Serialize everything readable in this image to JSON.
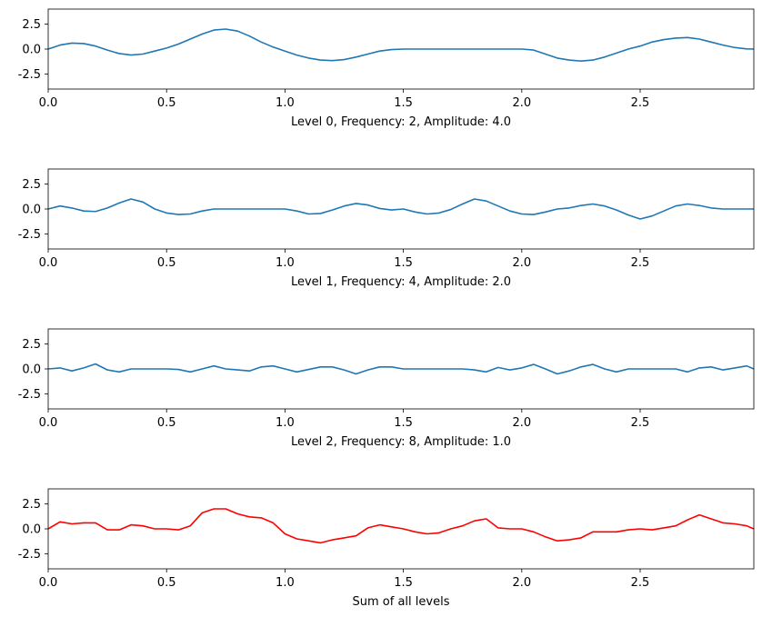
{
  "chart_data": [
    {
      "type": "line",
      "title": "",
      "xlabel": "Level 0, Frequency: 2, Amplitude: 4.0",
      "ylabel": "",
      "xlim": [
        0,
        2.98
      ],
      "ylim": [
        -4,
        4
      ],
      "xticks": [
        "0.0",
        "0.5",
        "1.0",
        "1.5",
        "2.0",
        "2.5"
      ],
      "yticks": [
        "2.5",
        "0.0",
        "-2.5"
      ],
      "color": "#1f77b4",
      "series": [
        {
          "x": [
            0,
            0.05,
            0.1,
            0.15,
            0.2,
            0.25,
            0.3,
            0.35,
            0.4,
            0.45,
            0.5,
            0.55,
            0.6,
            0.65,
            0.7,
            0.75,
            0.8,
            0.85,
            0.9,
            0.95,
            1.0,
            1.05,
            1.1,
            1.15,
            1.2,
            1.25,
            1.3,
            1.35,
            1.4,
            1.45,
            1.5,
            1.55,
            1.6,
            1.65,
            1.7,
            1.75,
            1.8,
            1.85,
            1.9,
            1.95,
            2.0,
            2.05,
            2.1,
            2.15,
            2.2,
            2.25,
            2.3,
            2.35,
            2.4,
            2.45,
            2.5,
            2.55,
            2.6,
            2.65,
            2.7,
            2.75,
            2.8,
            2.85,
            2.9,
            2.95,
            2.98
          ],
          "y": [
            0.0,
            0.4,
            0.6,
            0.55,
            0.3,
            -0.1,
            -0.45,
            -0.6,
            -0.5,
            -0.2,
            0.1,
            0.5,
            1.0,
            1.5,
            1.9,
            2.0,
            1.8,
            1.3,
            0.7,
            0.2,
            -0.2,
            -0.6,
            -0.9,
            -1.1,
            -1.15,
            -1.05,
            -0.8,
            -0.5,
            -0.2,
            -0.05,
            0.0,
            0.0,
            0.0,
            0.0,
            0.0,
            0.0,
            0.0,
            0.0,
            0.0,
            0.0,
            0.0,
            -0.1,
            -0.5,
            -0.9,
            -1.1,
            -1.2,
            -1.1,
            -0.8,
            -0.4,
            0.0,
            0.3,
            0.7,
            0.95,
            1.1,
            1.15,
            1.0,
            0.7,
            0.4,
            0.15,
            0.02,
            0.0
          ]
        }
      ]
    },
    {
      "type": "line",
      "title": "",
      "xlabel": "Level 1, Frequency: 4, Amplitude: 2.0",
      "ylabel": "",
      "xlim": [
        0,
        2.98
      ],
      "ylim": [
        -4,
        4
      ],
      "xticks": [
        "0.0",
        "0.5",
        "1.0",
        "1.5",
        "2.0",
        "2.5"
      ],
      "yticks": [
        "2.5",
        "0.0",
        "-2.5"
      ],
      "color": "#1f77b4",
      "series": [
        {
          "x": [
            0,
            0.05,
            0.1,
            0.15,
            0.2,
            0.25,
            0.3,
            0.35,
            0.4,
            0.45,
            0.5,
            0.55,
            0.6,
            0.65,
            0.7,
            0.75,
            0.8,
            0.85,
            0.9,
            0.95,
            1.0,
            1.05,
            1.1,
            1.15,
            1.2,
            1.25,
            1.3,
            1.35,
            1.4,
            1.45,
            1.5,
            1.55,
            1.6,
            1.65,
            1.7,
            1.75,
            1.8,
            1.85,
            1.9,
            1.95,
            2.0,
            2.05,
            2.1,
            2.15,
            2.2,
            2.25,
            2.3,
            2.35,
            2.4,
            2.45,
            2.5,
            2.55,
            2.6,
            2.65,
            2.7,
            2.75,
            2.8,
            2.85,
            2.9,
            2.95,
            2.98
          ],
          "y": [
            0.0,
            0.3,
            0.1,
            -0.2,
            -0.25,
            0.1,
            0.6,
            1.0,
            0.7,
            0.0,
            -0.4,
            -0.55,
            -0.5,
            -0.2,
            0.0,
            0.0,
            0.0,
            0.0,
            0.0,
            0.0,
            0.0,
            -0.2,
            -0.5,
            -0.45,
            -0.1,
            0.3,
            0.55,
            0.4,
            0.05,
            -0.1,
            0.0,
            -0.3,
            -0.5,
            -0.4,
            -0.05,
            0.5,
            1.0,
            0.8,
            0.3,
            -0.2,
            -0.5,
            -0.55,
            -0.3,
            0.0,
            0.1,
            0.35,
            0.5,
            0.3,
            -0.1,
            -0.6,
            -1.0,
            -0.7,
            -0.2,
            0.3,
            0.5,
            0.35,
            0.1,
            0.0,
            0.0,
            0.0,
            0.0
          ]
        }
      ]
    },
    {
      "type": "line",
      "title": "",
      "xlabel": "Level 2, Frequency: 8, Amplitude: 1.0",
      "ylabel": "",
      "xlim": [
        0,
        2.98
      ],
      "ylim": [
        -4,
        4
      ],
      "xticks": [
        "0.0",
        "0.5",
        "1.0",
        "1.5",
        "2.0",
        "2.5"
      ],
      "yticks": [
        "2.5",
        "0.0",
        "-2.5"
      ],
      "color": "#1f77b4",
      "series": [
        {
          "x": [
            0,
            0.05,
            0.1,
            0.15,
            0.2,
            0.25,
            0.3,
            0.35,
            0.4,
            0.45,
            0.5,
            0.55,
            0.6,
            0.65,
            0.7,
            0.75,
            0.8,
            0.85,
            0.9,
            0.95,
            1.0,
            1.05,
            1.1,
            1.15,
            1.2,
            1.25,
            1.3,
            1.35,
            1.4,
            1.45,
            1.5,
            1.55,
            1.6,
            1.65,
            1.7,
            1.75,
            1.8,
            1.85,
            1.9,
            1.95,
            2.0,
            2.05,
            2.1,
            2.15,
            2.2,
            2.25,
            2.3,
            2.35,
            2.4,
            2.45,
            2.5,
            2.55,
            2.6,
            2.65,
            2.7,
            2.75,
            2.8,
            2.85,
            2.9,
            2.95,
            2.98
          ],
          "y": [
            0.0,
            0.1,
            -0.2,
            0.1,
            0.5,
            -0.1,
            -0.3,
            0.0,
            0.0,
            0.0,
            0.0,
            -0.05,
            -0.3,
            0.0,
            0.3,
            0.0,
            -0.1,
            -0.2,
            0.2,
            0.3,
            0.0,
            -0.3,
            -0.05,
            0.2,
            0.2,
            -0.1,
            -0.5,
            -0.1,
            0.2,
            0.2,
            0.0,
            0.0,
            0.0,
            0.0,
            0.0,
            0.0,
            -0.1,
            -0.3,
            0.15,
            -0.1,
            0.1,
            0.45,
            0.0,
            -0.5,
            -0.2,
            0.2,
            0.45,
            0.0,
            -0.3,
            0.0,
            0.0,
            0.0,
            0.0,
            0.0,
            -0.3,
            0.1,
            0.2,
            -0.1,
            0.1,
            0.3,
            0.0
          ]
        }
      ]
    },
    {
      "type": "line",
      "title": "",
      "xlabel": "Sum of all levels",
      "ylabel": "",
      "xlim": [
        0,
        2.98
      ],
      "ylim": [
        -4,
        4
      ],
      "xticks": [
        "0.0",
        "0.5",
        "1.0",
        "1.5",
        "2.0",
        "2.5"
      ],
      "yticks": [
        "2.5",
        "0.0",
        "-2.5"
      ],
      "color": "#ff0000",
      "series": [
        {
          "x": [
            0,
            0.05,
            0.1,
            0.15,
            0.2,
            0.25,
            0.3,
            0.35,
            0.4,
            0.45,
            0.5,
            0.55,
            0.6,
            0.65,
            0.7,
            0.75,
            0.8,
            0.85,
            0.9,
            0.95,
            1.0,
            1.05,
            1.1,
            1.15,
            1.2,
            1.25,
            1.3,
            1.35,
            1.4,
            1.45,
            1.5,
            1.55,
            1.6,
            1.65,
            1.7,
            1.75,
            1.8,
            1.85,
            1.9,
            1.95,
            2.0,
            2.05,
            2.1,
            2.15,
            2.2,
            2.25,
            2.3,
            2.35,
            2.4,
            2.45,
            2.5,
            2.55,
            2.6,
            2.65,
            2.7,
            2.75,
            2.8,
            2.85,
            2.9,
            2.95,
            2.98
          ],
          "y": [
            0.0,
            0.7,
            0.5,
            0.6,
            0.6,
            -0.1,
            -0.1,
            0.4,
            0.3,
            0.0,
            0.0,
            -0.1,
            0.3,
            1.6,
            2.0,
            2.0,
            1.5,
            1.2,
            1.1,
            0.6,
            -0.5,
            -1.0,
            -1.2,
            -1.4,
            -1.1,
            -0.9,
            -0.7,
            0.1,
            0.4,
            0.2,
            0.0,
            -0.3,
            -0.5,
            -0.4,
            0.0,
            0.3,
            0.8,
            1.0,
            0.1,
            0.0,
            0.0,
            -0.3,
            -0.8,
            -1.2,
            -1.1,
            -0.9,
            -0.3,
            -0.3,
            -0.3,
            -0.1,
            0.0,
            -0.1,
            0.1,
            0.3,
            0.9,
            1.4,
            1.0,
            0.6,
            0.5,
            0.3,
            0.0
          ]
        }
      ]
    }
  ]
}
